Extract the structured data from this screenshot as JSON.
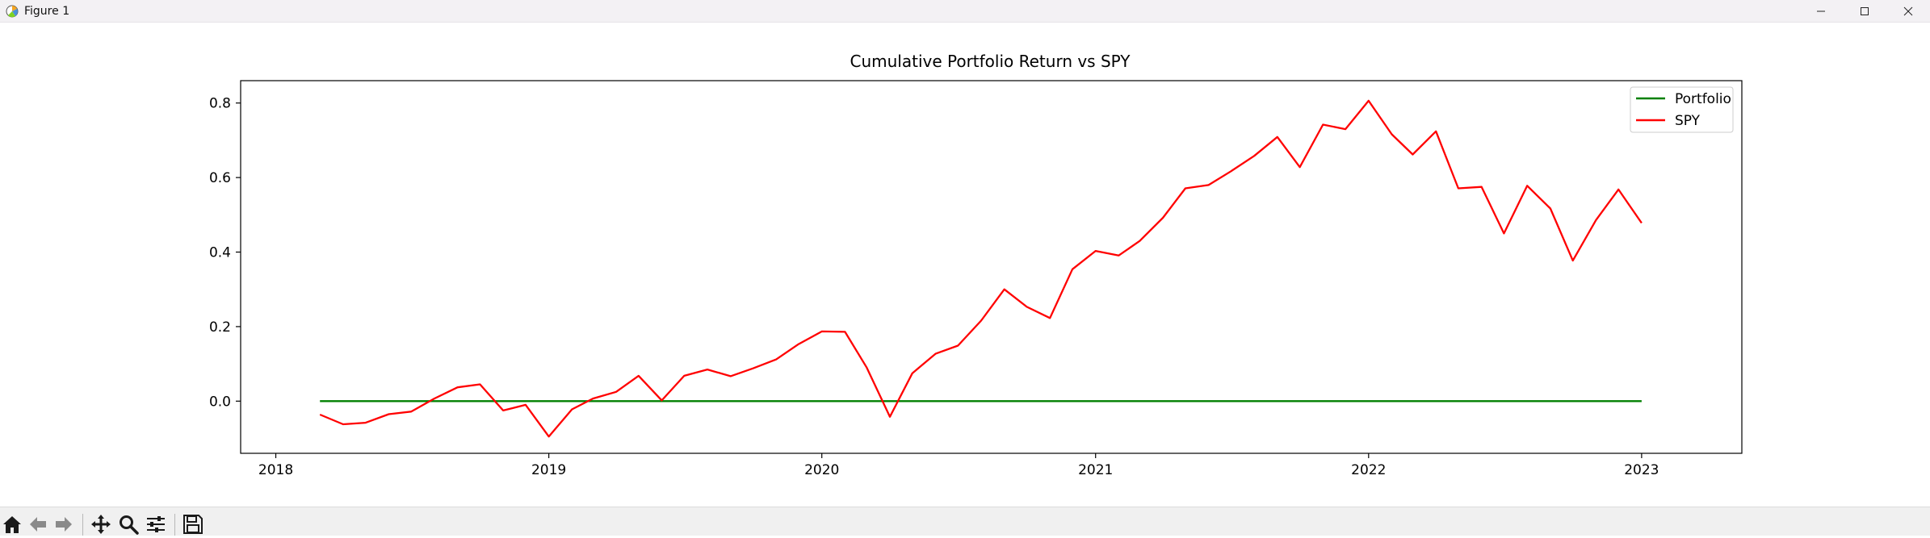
{
  "window": {
    "title": "Figure 1"
  },
  "toolbar": {
    "buttons": [
      "home-icon",
      "back-arrow-icon",
      "forward-arrow-icon",
      "pan-icon",
      "zoom-icon",
      "configure-subplots-icon",
      "save-icon"
    ]
  },
  "chart_data": {
    "type": "line",
    "title": "Cumulative Portfolio Return vs SPY",
    "xlabel": "",
    "ylabel": "",
    "x_tick_labels": [
      "2018",
      "2019",
      "2020",
      "2021",
      "2022",
      "2023"
    ],
    "y_tick_labels": [
      "0.0",
      "0.2",
      "0.4",
      "0.6",
      "0.8"
    ],
    "y_ticks": [
      0.0,
      0.2,
      0.4,
      0.6,
      0.8
    ],
    "xlim": [
      "2017-11-15",
      "2023-05-15"
    ],
    "ylim": [
      -0.14,
      0.86
    ],
    "grid": false,
    "legend": {
      "position": "top-right",
      "entries": [
        "Portfolio",
        "SPY"
      ]
    },
    "x": [
      "2018-03-01",
      "2018-04-01",
      "2018-05-01",
      "2018-06-01",
      "2018-07-01",
      "2018-08-01",
      "2018-09-01",
      "2018-10-01",
      "2018-11-01",
      "2018-12-01",
      "2019-01-01",
      "2019-02-01",
      "2019-03-01",
      "2019-04-01",
      "2019-05-01",
      "2019-06-01",
      "2019-07-01",
      "2019-08-01",
      "2019-09-01",
      "2019-10-01",
      "2019-11-01",
      "2019-12-01",
      "2020-01-01",
      "2020-02-01",
      "2020-03-01",
      "2020-04-01",
      "2020-05-01",
      "2020-06-01",
      "2020-07-01",
      "2020-08-01",
      "2020-09-01",
      "2020-10-01",
      "2020-11-01",
      "2020-12-01",
      "2021-01-01",
      "2021-02-01",
      "2021-03-01",
      "2021-04-01",
      "2021-05-01",
      "2021-06-01",
      "2021-07-01",
      "2021-08-01",
      "2021-09-01",
      "2021-10-01",
      "2021-11-01",
      "2021-12-01",
      "2022-01-01",
      "2022-02-01",
      "2022-03-01",
      "2022-04-01",
      "2022-05-01",
      "2022-06-01",
      "2022-07-01",
      "2022-08-01",
      "2022-09-01",
      "2022-10-01",
      "2022-11-01",
      "2022-12-01",
      "2023-01-01"
    ],
    "series": [
      {
        "name": "Portfolio",
        "color": "#008000",
        "values": [
          0,
          0,
          0,
          0,
          0,
          0,
          0,
          0,
          0,
          0,
          0,
          0,
          0,
          0,
          0,
          0,
          0,
          0,
          0,
          0,
          0,
          0,
          0,
          0,
          0,
          0,
          0,
          0,
          0,
          0,
          0,
          0,
          0,
          0,
          0,
          0,
          0,
          0,
          0,
          0,
          0,
          0,
          0,
          0,
          0,
          0,
          0,
          0,
          0,
          0,
          0,
          0,
          0,
          0,
          0,
          0,
          0,
          0,
          0
        ]
      },
      {
        "name": "SPY",
        "color": "#ff0000",
        "values": [
          -0.036,
          -0.062,
          -0.058,
          -0.035,
          -0.028,
          0.007,
          0.037,
          0.045,
          -0.025,
          -0.01,
          -0.095,
          -0.022,
          0.007,
          0.025,
          0.068,
          0.002,
          0.068,
          0.085,
          0.067,
          0.088,
          0.112,
          0.153,
          0.187,
          0.186,
          0.09,
          -0.042,
          0.075,
          0.127,
          0.149,
          0.216,
          0.3,
          0.253,
          0.223,
          0.354,
          0.403,
          0.391,
          0.43,
          0.492,
          0.571,
          0.58,
          0.617,
          0.658,
          0.709,
          0.628,
          0.742,
          0.73,
          0.806,
          0.716,
          0.662,
          0.724,
          0.571,
          0.575,
          0.45,
          0.578,
          0.517,
          0.377,
          0.486,
          0.568,
          0.478
        ]
      }
    ]
  }
}
